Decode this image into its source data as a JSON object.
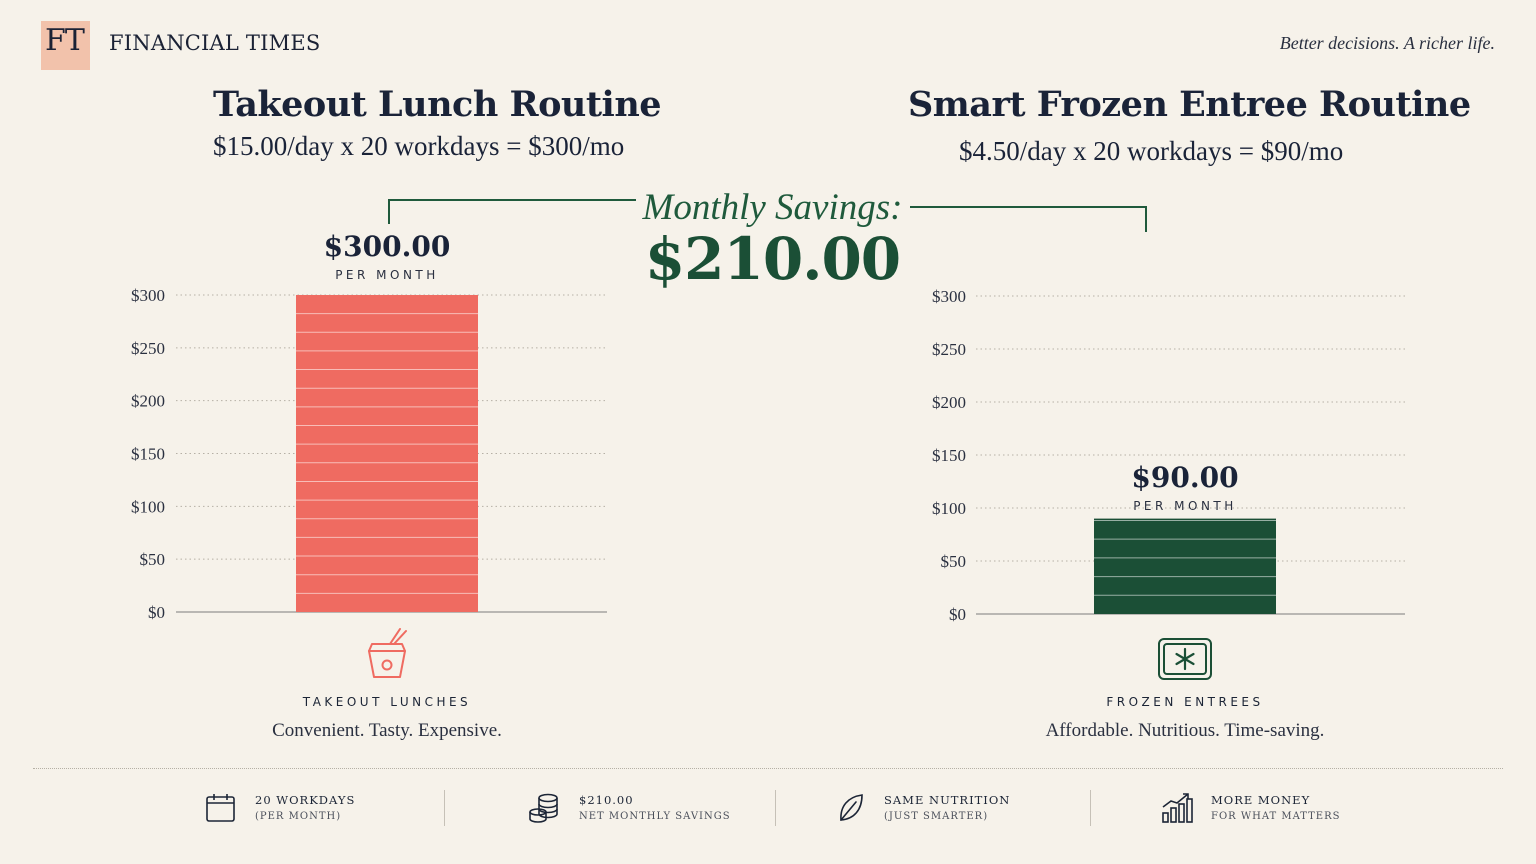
{
  "header": {
    "logo_text": "FT",
    "brand_name": "FINANCIAL TIMES",
    "tagline": "Better decisions. A richer life."
  },
  "left_panel": {
    "title": "Takeout Lunch Routine",
    "subtitle": "$15.00/day x 20 workdays = $300/mo",
    "bar_value_label": "$300.00",
    "per_month": "PER MONTH",
    "category_label": "TAKEOUT LUNCHES",
    "category_desc": "Convenient. Tasty. Expensive.",
    "icon": "takeout-box-icon",
    "color": "#ef6b61"
  },
  "right_panel": {
    "title": "Smart Frozen Entree Routine",
    "subtitle": "$4.50/day x 20 workdays = $90/mo",
    "bar_value_label": "$90.00",
    "per_month": "PER MONTH",
    "category_label": "FROZEN ENTREES",
    "category_desc": "Affordable. Nutritious. Time-saving.",
    "icon": "frozen-snowflake-icon",
    "color": "#1b4f36"
  },
  "savings": {
    "label": "Monthly Savings:",
    "value": "$210.00"
  },
  "chart_data": [
    {
      "type": "bar",
      "categories": [
        "Takeout Lunches"
      ],
      "values": [
        300
      ],
      "title": "Takeout Lunch Routine",
      "ylim": [
        0,
        300
      ],
      "yticks": [
        0,
        50,
        100,
        150,
        200,
        250,
        300
      ],
      "ytick_labels": [
        "$0",
        "$50",
        "$100",
        "$150",
        "$200",
        "$250",
        "$300"
      ],
      "grid": true
    },
    {
      "type": "bar",
      "categories": [
        "Frozen Entrees"
      ],
      "values": [
        90
      ],
      "title": "Smart Frozen Entree Routine",
      "ylim": [
        0,
        300
      ],
      "yticks": [
        0,
        50,
        100,
        150,
        200,
        250,
        300
      ],
      "ytick_labels": [
        "$0",
        "$50",
        "$100",
        "$150",
        "$200",
        "$250",
        "$300"
      ],
      "grid": true
    }
  ],
  "footer": {
    "stats": [
      {
        "main": "20 WORKDAYS",
        "sub": "(PER MONTH)",
        "icon": "calendar-icon"
      },
      {
        "main": "$210.00",
        "sub": "NET MONTHLY SAVINGS",
        "icon": "coins-stack-icon"
      },
      {
        "main": "SAME NUTRITION",
        "sub": "(JUST SMARTER)",
        "icon": "leaf-icon"
      },
      {
        "main": "MORE MONEY",
        "sub": "FOR WHAT MATTERS",
        "icon": "growth-chart-icon"
      }
    ]
  }
}
